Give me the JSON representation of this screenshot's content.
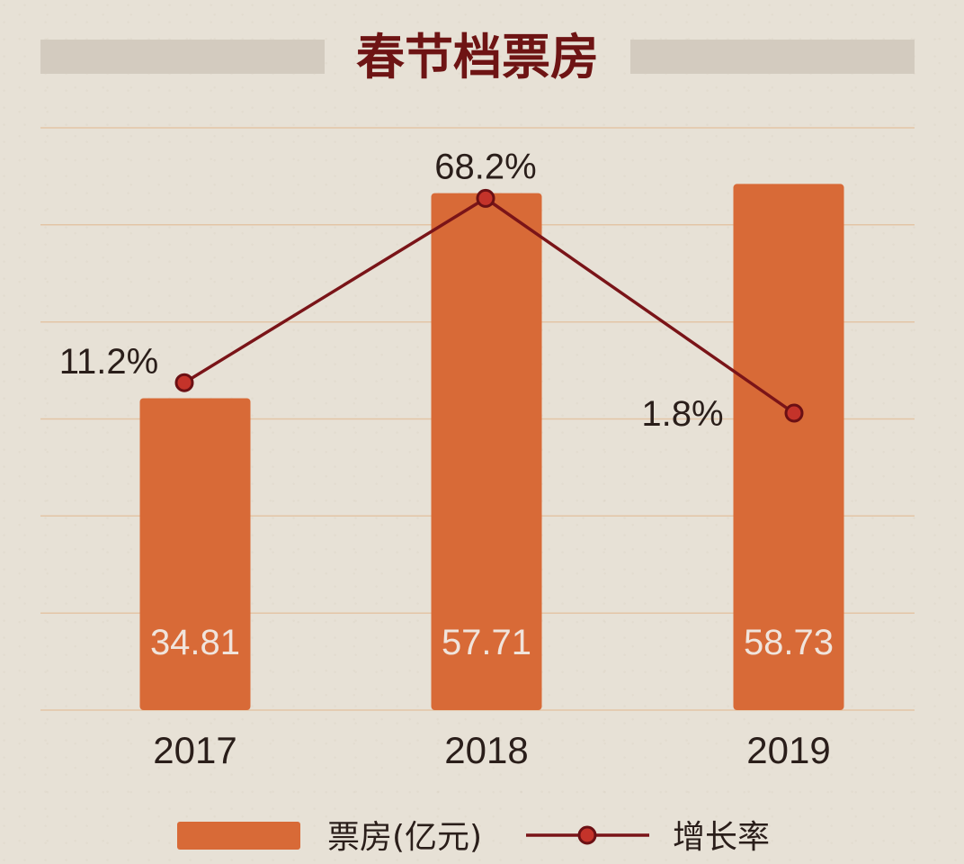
{
  "chart_data": {
    "type": "bar",
    "title": "春节档票房",
    "categories": [
      "2017",
      "2018",
      "2019"
    ],
    "series": [
      {
        "name": "票房(亿元)",
        "type": "bar",
        "values": [
          34.81,
          57.71,
          58.73
        ],
        "labels": [
          "34.81",
          "57.71",
          "58.73"
        ]
      },
      {
        "name": "增长率",
        "type": "line",
        "values": [
          11.2,
          68.2,
          1.8
        ],
        "labels": [
          "11.2%",
          "68.2%",
          "1.8%"
        ]
      }
    ],
    "ylim_bar": [
      0,
      65
    ],
    "ylim_line": [
      -90,
      90
    ],
    "grid": true,
    "legend_position": "bottom",
    "colors": {
      "bar": "#d86a37",
      "line": "#7a1418",
      "point": "#c4332a",
      "title": "#6e1414",
      "background": "#e7e1d6"
    }
  }
}
